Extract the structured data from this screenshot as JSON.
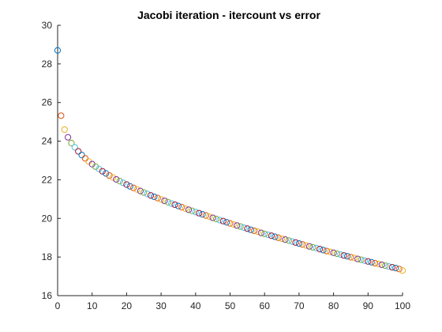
{
  "chart_data": {
    "type": "scatter",
    "title": "Jacobi iteration - itercount vs error",
    "xlabel": "",
    "ylabel": "",
    "xlim": [
      0,
      100
    ],
    "ylim": [
      16,
      30
    ],
    "xticks": [
      0,
      10,
      20,
      30,
      40,
      50,
      60,
      70,
      80,
      90,
      100
    ],
    "yticks": [
      16,
      18,
      20,
      22,
      24,
      26,
      28,
      30
    ],
    "grid": false,
    "legend": "none",
    "marker": "circle-open",
    "color_cycle": [
      "#0072BD",
      "#D95319",
      "#EDB120",
      "#7E2F8E",
      "#77AC30",
      "#4DBEEE",
      "#A2142F"
    ],
    "x": [
      0,
      1,
      2,
      3,
      4,
      5,
      6,
      7,
      8,
      9,
      10,
      11,
      12,
      13,
      14,
      15,
      16,
      17,
      18,
      19,
      20,
      21,
      22,
      23,
      24,
      25,
      26,
      27,
      28,
      29,
      30,
      31,
      32,
      33,
      34,
      35,
      36,
      37,
      38,
      39,
      40,
      41,
      42,
      43,
      44,
      45,
      46,
      47,
      48,
      49,
      50,
      51,
      52,
      53,
      54,
      55,
      56,
      57,
      58,
      59,
      60,
      61,
      62,
      63,
      64,
      65,
      66,
      67,
      68,
      69,
      70,
      71,
      72,
      73,
      74,
      75,
      76,
      77,
      78,
      79,
      80,
      81,
      82,
      83,
      84,
      85,
      86,
      87,
      88,
      89,
      90,
      91,
      92,
      93,
      94,
      95,
      96,
      97,
      98,
      99,
      100
    ],
    "y": [
      28.7,
      25.32,
      24.6,
      24.2,
      23.9,
      23.68,
      23.47,
      23.28,
      23.11,
      22.95,
      22.81,
      22.68,
      22.56,
      22.44,
      22.33,
      22.22,
      22.12,
      22.02,
      21.93,
      21.84,
      21.75,
      21.66,
      21.58,
      21.5,
      21.42,
      21.34,
      21.27,
      21.19,
      21.12,
      21.05,
      20.98,
      20.91,
      20.84,
      20.77,
      20.71,
      20.64,
      20.58,
      20.51,
      20.45,
      20.39,
      20.33,
      20.27,
      20.21,
      20.15,
      20.09,
      20.03,
      19.97,
      19.91,
      19.86,
      19.8,
      19.74,
      19.69,
      19.63,
      19.58,
      19.52,
      19.47,
      19.41,
      19.36,
      19.31,
      19.25,
      19.2,
      19.15,
      19.1,
      19.05,
      19.0,
      18.95,
      18.9,
      18.85,
      18.8,
      18.75,
      18.7,
      18.65,
      18.6,
      18.55,
      18.5,
      18.46,
      18.41,
      18.36,
      18.31,
      18.27,
      18.22,
      18.17,
      18.13,
      18.08,
      18.04,
      17.99,
      17.95,
      17.9,
      17.86,
      17.81,
      17.77,
      17.73,
      17.68,
      17.64,
      17.6,
      17.55,
      17.51,
      17.47,
      17.43,
      17.38,
      17.3
    ]
  }
}
